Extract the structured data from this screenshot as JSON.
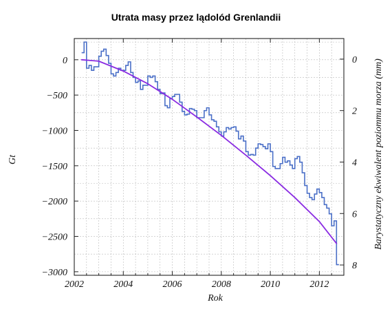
{
  "chart_data": {
    "type": "line",
    "title": "Utrata masy przez lądolód Grenlandii",
    "xlabel": "Rok",
    "ylabel": "Gt",
    "y2label": "Barystatyczny ekwiwalent poziommu morza (mm)",
    "xlim": [
      2002,
      2013
    ],
    "ylim": [
      -3050,
      300
    ],
    "y2lim": [
      8.4,
      -0.8
    ],
    "grid": true,
    "legend": "none",
    "x_ticks": [
      2002,
      2004,
      2006,
      2008,
      2010,
      2012
    ],
    "x_tick_labels": [
      "2002",
      "2004",
      "2006",
      "2008",
      "2010",
      "2012"
    ],
    "y_ticks": [
      0,
      -500,
      -1000,
      -1500,
      -2000,
      -2500,
      -3000
    ],
    "y_tick_labels": [
      "0",
      "−500",
      "−1000",
      "−1500",
      "−2000",
      "−2500",
      "−3000"
    ],
    "y2_ticks": [
      0,
      2,
      4,
      6,
      8
    ],
    "y2_tick_labels": [
      "0",
      "2",
      "4",
      "6",
      "8"
    ],
    "colors": {
      "monthly": "#4a6fc7",
      "trend": "#8a2be2"
    },
    "series": [
      {
        "style": "step",
        "x": [
          2002.3,
          2002.4,
          2002.5,
          2002.6,
          2002.7,
          2002.8,
          2003.0,
          2003.1,
          2003.2,
          2003.3,
          2003.4,
          2003.5,
          2003.6,
          2003.7,
          2003.8,
          2003.9,
          2004.0,
          2004.1,
          2004.2,
          2004.3,
          2004.4,
          2004.5,
          2004.6,
          2004.7,
          2004.8,
          2004.9,
          2005.0,
          2005.1,
          2005.2,
          2005.3,
          2005.4,
          2005.5,
          2005.6,
          2005.7,
          2005.8,
          2005.9,
          2006.0,
          2006.1,
          2006.2,
          2006.3,
          2006.4,
          2006.5,
          2006.6,
          2006.7,
          2006.8,
          2006.9,
          2007.0,
          2007.1,
          2007.2,
          2007.3,
          2007.4,
          2007.5,
          2007.6,
          2007.7,
          2007.8,
          2007.9,
          2008.0,
          2008.1,
          2008.2,
          2008.3,
          2008.4,
          2008.5,
          2008.6,
          2008.7,
          2008.8,
          2008.9,
          2009.0,
          2009.1,
          2009.2,
          2009.3,
          2009.4,
          2009.5,
          2009.6,
          2009.7,
          2009.8,
          2009.9,
          2010.0,
          2010.1,
          2010.2,
          2010.3,
          2010.4,
          2010.5,
          2010.6,
          2010.7,
          2010.8,
          2010.9,
          2011.0,
          2011.1,
          2011.2,
          2011.3,
          2011.4,
          2011.5,
          2011.6,
          2011.7,
          2011.8,
          2011.9,
          2012.0,
          2012.1,
          2012.2,
          2012.3,
          2012.4,
          2012.5,
          2012.6,
          2012.7
        ],
        "values": [
          100,
          250,
          -120,
          -80,
          -150,
          -100,
          50,
          120,
          150,
          60,
          -50,
          -200,
          -230,
          -180,
          -120,
          -150,
          -150,
          -80,
          -30,
          -180,
          -250,
          -320,
          -300,
          -420,
          -360,
          -360,
          -230,
          -250,
          -230,
          -310,
          -420,
          -480,
          -470,
          -650,
          -680,
          -550,
          -520,
          -490,
          -490,
          -600,
          -730,
          -780,
          -770,
          -690,
          -700,
          -720,
          -820,
          -820,
          -820,
          -720,
          -680,
          -780,
          -850,
          -870,
          -950,
          -1020,
          -1080,
          -1020,
          -960,
          -980,
          -960,
          -950,
          -1010,
          -1120,
          -1080,
          -1150,
          -1300,
          -1350,
          -1340,
          -1350,
          -1250,
          -1190,
          -1200,
          -1230,
          -1260,
          -1190,
          -1300,
          -1510,
          -1540,
          -1540,
          -1470,
          -1380,
          -1450,
          -1430,
          -1490,
          -1540,
          -1400,
          -1370,
          -1450,
          -1600,
          -1780,
          -1890,
          -1950,
          -1980,
          -1900,
          -1830,
          -1880,
          -1950,
          -2050,
          -2100,
          -2180,
          -2350,
          -2280,
          -2900
        ]
      },
      {
        "style": "trend",
        "x": [
          2002.3,
          2003.0,
          2004.0,
          2005.0,
          2006.0,
          2007.0,
          2008.0,
          2009.0,
          2010.0,
          2011.0,
          2012.0,
          2012.7
        ],
        "values": [
          0,
          -20,
          -160,
          -340,
          -560,
          -810,
          -1070,
          -1350,
          -1640,
          -1950,
          -2290,
          -2600
        ]
      }
    ]
  }
}
